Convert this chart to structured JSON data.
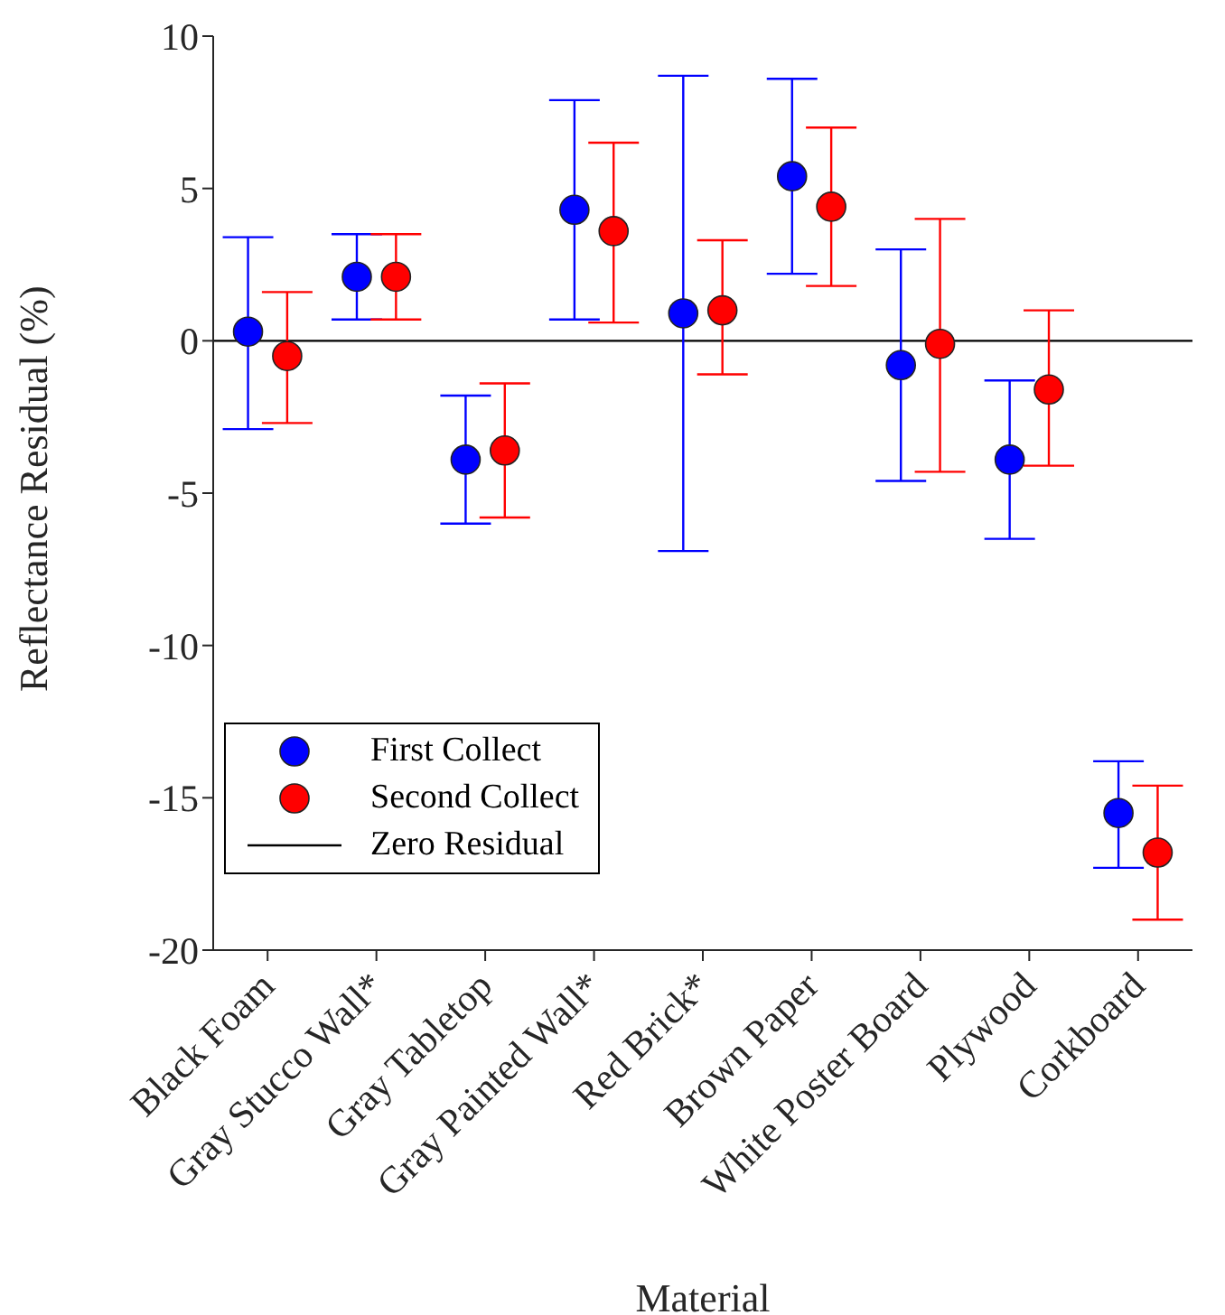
{
  "chart_data": {
    "type": "scatter",
    "xlabel": "Material",
    "ylabel": "Reflectance Residual (%)",
    "categories": [
      "Black Foam",
      "Gray Stucco Wall*",
      "Gray Tabletop",
      "Gray Painted Wall*",
      "Red Brick*",
      "Brown Paper",
      "White Poster Board",
      "Plywood",
      "Corkboard"
    ],
    "series": [
      {
        "name": "First Collect",
        "color": "#0000ff",
        "values": [
          0.3,
          2.1,
          -3.9,
          4.3,
          0.9,
          5.4,
          -0.8,
          -3.9,
          -15.5
        ],
        "errors": [
          [
            -2.9,
            3.4
          ],
          [
            0.7,
            3.5
          ],
          [
            -6.0,
            -1.8
          ],
          [
            0.7,
            7.9
          ],
          [
            -6.9,
            8.7
          ],
          [
            2.2,
            8.6
          ],
          [
            -4.6,
            3.0
          ],
          [
            -6.5,
            -1.3
          ],
          [
            -17.3,
            -13.8
          ]
        ]
      },
      {
        "name": "Second Collect",
        "color": "#ff0000",
        "values": [
          -0.5,
          2.1,
          -3.6,
          3.6,
          1.0,
          4.4,
          -0.1,
          -1.6,
          -16.8
        ],
        "errors": [
          [
            -2.7,
            1.6
          ],
          [
            0.7,
            3.5
          ],
          [
            -5.8,
            -1.4
          ],
          [
            0.6,
            6.5
          ],
          [
            -1.1,
            3.3
          ],
          [
            1.8,
            7.0
          ],
          [
            -4.3,
            4.0
          ],
          [
            -4.1,
            1.0
          ],
          [
            -19.0,
            -14.6
          ]
        ]
      }
    ],
    "ref_lines": [
      {
        "axis": "y",
        "value": 0,
        "label": "Zero Residual",
        "color": "#000000"
      }
    ],
    "ylim": [
      -20,
      10
    ],
    "yticks": [
      -20,
      -15,
      -10,
      -5,
      0,
      5,
      10
    ],
    "marker": "circle",
    "grid": false,
    "legend": "bottom left"
  }
}
